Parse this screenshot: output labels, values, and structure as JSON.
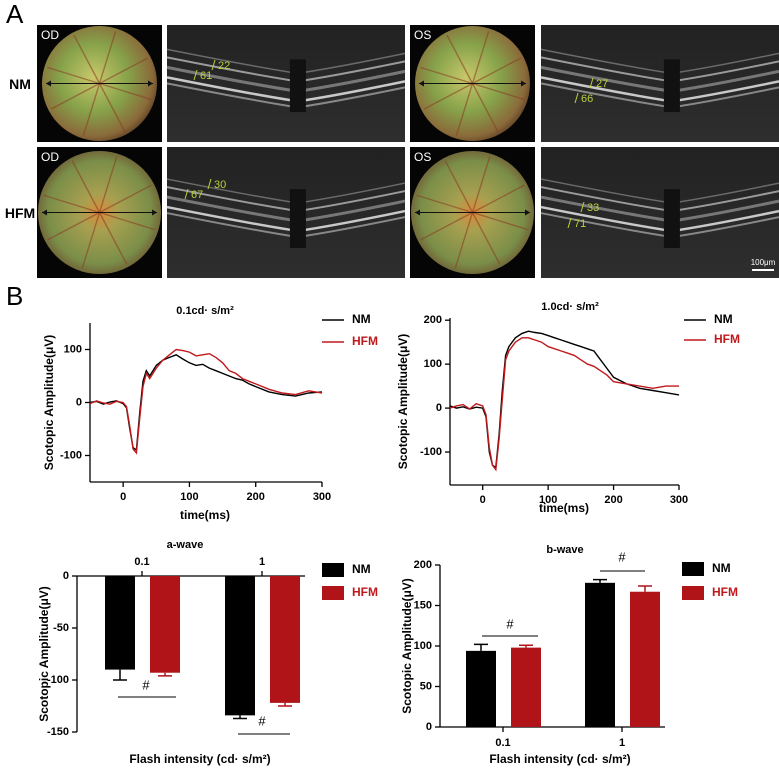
{
  "panel_a": {
    "label": "A",
    "rows": [
      {
        "label": "NM",
        "eyes": [
          "OD",
          "OS"
        ],
        "measurements": [
          [
            61,
            22
          ],
          [
            27,
            66
          ]
        ]
      },
      {
        "label": "HFM",
        "eyes": [
          "OD",
          "OS"
        ],
        "measurements": [
          [
            67,
            30
          ],
          [
            33,
            71
          ]
        ]
      }
    ],
    "scale_bar": "100μm"
  },
  "panel_b": {
    "label": "B"
  },
  "chart_data": [
    {
      "type": "line",
      "title": "0.1cd· s/m²",
      "x_label": "time(ms)",
      "y_label": "Scotopic Amplitude(μV)",
      "x": [
        -50,
        -40,
        -30,
        -20,
        -10,
        0,
        5,
        10,
        15,
        20,
        25,
        30,
        35,
        40,
        50,
        60,
        70,
        80,
        90,
        100,
        110,
        120,
        130,
        140,
        150,
        160,
        170,
        180,
        190,
        200,
        220,
        240,
        260,
        280,
        300
      ],
      "series": [
        {
          "name": "NM",
          "color": "#000000",
          "values": [
            0,
            2,
            -3,
            1,
            3,
            -2,
            -10,
            -50,
            -85,
            -90,
            -20,
            40,
            60,
            50,
            70,
            80,
            85,
            90,
            82,
            75,
            70,
            72,
            65,
            60,
            55,
            50,
            45,
            42,
            35,
            30,
            20,
            15,
            12,
            18,
            20
          ]
        },
        {
          "name": "HFM",
          "color": "#c0191c",
          "values": [
            -2,
            3,
            -1,
            -3,
            2,
            0,
            -8,
            -45,
            -88,
            -95,
            -30,
            30,
            55,
            45,
            65,
            80,
            90,
            100,
            98,
            95,
            88,
            90,
            92,
            85,
            75,
            60,
            55,
            45,
            40,
            35,
            25,
            18,
            15,
            22,
            18
          ]
        }
      ],
      "xlim": [
        -50,
        300
      ],
      "xticks": [
        0,
        100,
        200,
        300
      ],
      "ylim": [
        -150,
        150
      ],
      "yticks": [
        -100,
        0,
        100
      ]
    },
    {
      "type": "line",
      "title": "1.0cd· s/m²",
      "x_label": "time(ms)",
      "y_label": "Scotopic Amplitude(μV)",
      "x": [
        -50,
        -40,
        -30,
        -20,
        -10,
        0,
        5,
        10,
        15,
        20,
        25,
        30,
        35,
        40,
        50,
        60,
        70,
        80,
        90,
        100,
        110,
        120,
        130,
        140,
        150,
        160,
        170,
        180,
        190,
        200,
        220,
        240,
        260,
        280,
        300
      ],
      "series": [
        {
          "name": "NM",
          "color": "#000000",
          "values": [
            5,
            0,
            3,
            -2,
            2,
            0,
            -20,
            -100,
            -130,
            -135,
            -60,
            40,
            120,
            140,
            160,
            170,
            175,
            172,
            170,
            165,
            160,
            155,
            150,
            145,
            140,
            135,
            130,
            110,
            90,
            70,
            55,
            45,
            40,
            35,
            30
          ]
        },
        {
          "name": "HFM",
          "color": "#c0191c",
          "values": [
            0,
            5,
            8,
            -2,
            10,
            5,
            -15,
            -90,
            -130,
            -140,
            -70,
            20,
            110,
            130,
            150,
            160,
            160,
            155,
            150,
            140,
            135,
            130,
            125,
            120,
            110,
            100,
            95,
            85,
            75,
            60,
            55,
            50,
            45,
            50,
            50
          ]
        }
      ],
      "xlim": [
        -50,
        300
      ],
      "xticks": [
        0,
        100,
        200,
        300
      ],
      "ylim": [
        -175,
        205
      ],
      "yticks": [
        -100,
        0,
        100,
        200
      ]
    },
    {
      "type": "bar",
      "title": "a-wave",
      "x_label": "Flash intensity (cd· s/m²)",
      "y_label": "Scotopic Amplitude(μV)",
      "categories": [
        "0.1",
        "1"
      ],
      "series": [
        {
          "name": "NM",
          "color": "#000000",
          "values": [
            -90,
            -134
          ],
          "errors": [
            10,
            3
          ]
        },
        {
          "name": "HFM",
          "color": "#b01418",
          "values": [
            -93,
            -122
          ],
          "errors": [
            3,
            3
          ]
        }
      ],
      "annotations": [
        "#",
        "#"
      ],
      "ylim": [
        -150,
        0
      ],
      "yticks": [
        0,
        -50,
        -100,
        -150
      ]
    },
    {
      "type": "bar",
      "title": "b-wave",
      "x_label": "Flash intensity (cd· s/m²)",
      "y_label": "Scotopic Amplitude(μV)",
      "categories": [
        "0.1",
        "1"
      ],
      "series": [
        {
          "name": "NM",
          "color": "#000000",
          "values": [
            94,
            178
          ],
          "errors": [
            8,
            4
          ]
        },
        {
          "name": "HFM",
          "color": "#b01418",
          "values": [
            98,
            167
          ],
          "errors": [
            3,
            7
          ]
        }
      ],
      "annotations": [
        "#",
        "#"
      ],
      "ylim": [
        0,
        200
      ],
      "yticks": [
        0,
        50,
        100,
        150,
        200
      ]
    }
  ]
}
